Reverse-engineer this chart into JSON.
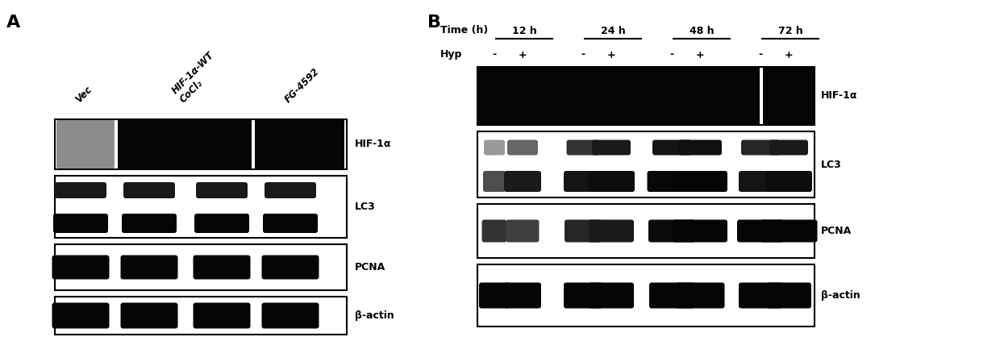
{
  "fig_width": 12.4,
  "fig_height": 4.23,
  "bg_color": "#ffffff",
  "panel_A": {
    "label": "A",
    "col_labels": [
      "Vec",
      "HIF-1α-WT\nCoCl₂",
      "FG-4592"
    ],
    "row_labels": [
      "HIF-1α",
      "LC3",
      "PCNA",
      "β-actin"
    ]
  },
  "panel_B": {
    "label": "B",
    "time_labels": [
      "12 h",
      "24 h",
      "48 h",
      "72 h"
    ],
    "hyp_labels": [
      "-",
      "+",
      "-",
      "+",
      "-",
      "+",
      "-",
      "+"
    ],
    "row_labels": [
      "HIF-1α",
      "LC3",
      "PCNA",
      "β-actin"
    ]
  }
}
